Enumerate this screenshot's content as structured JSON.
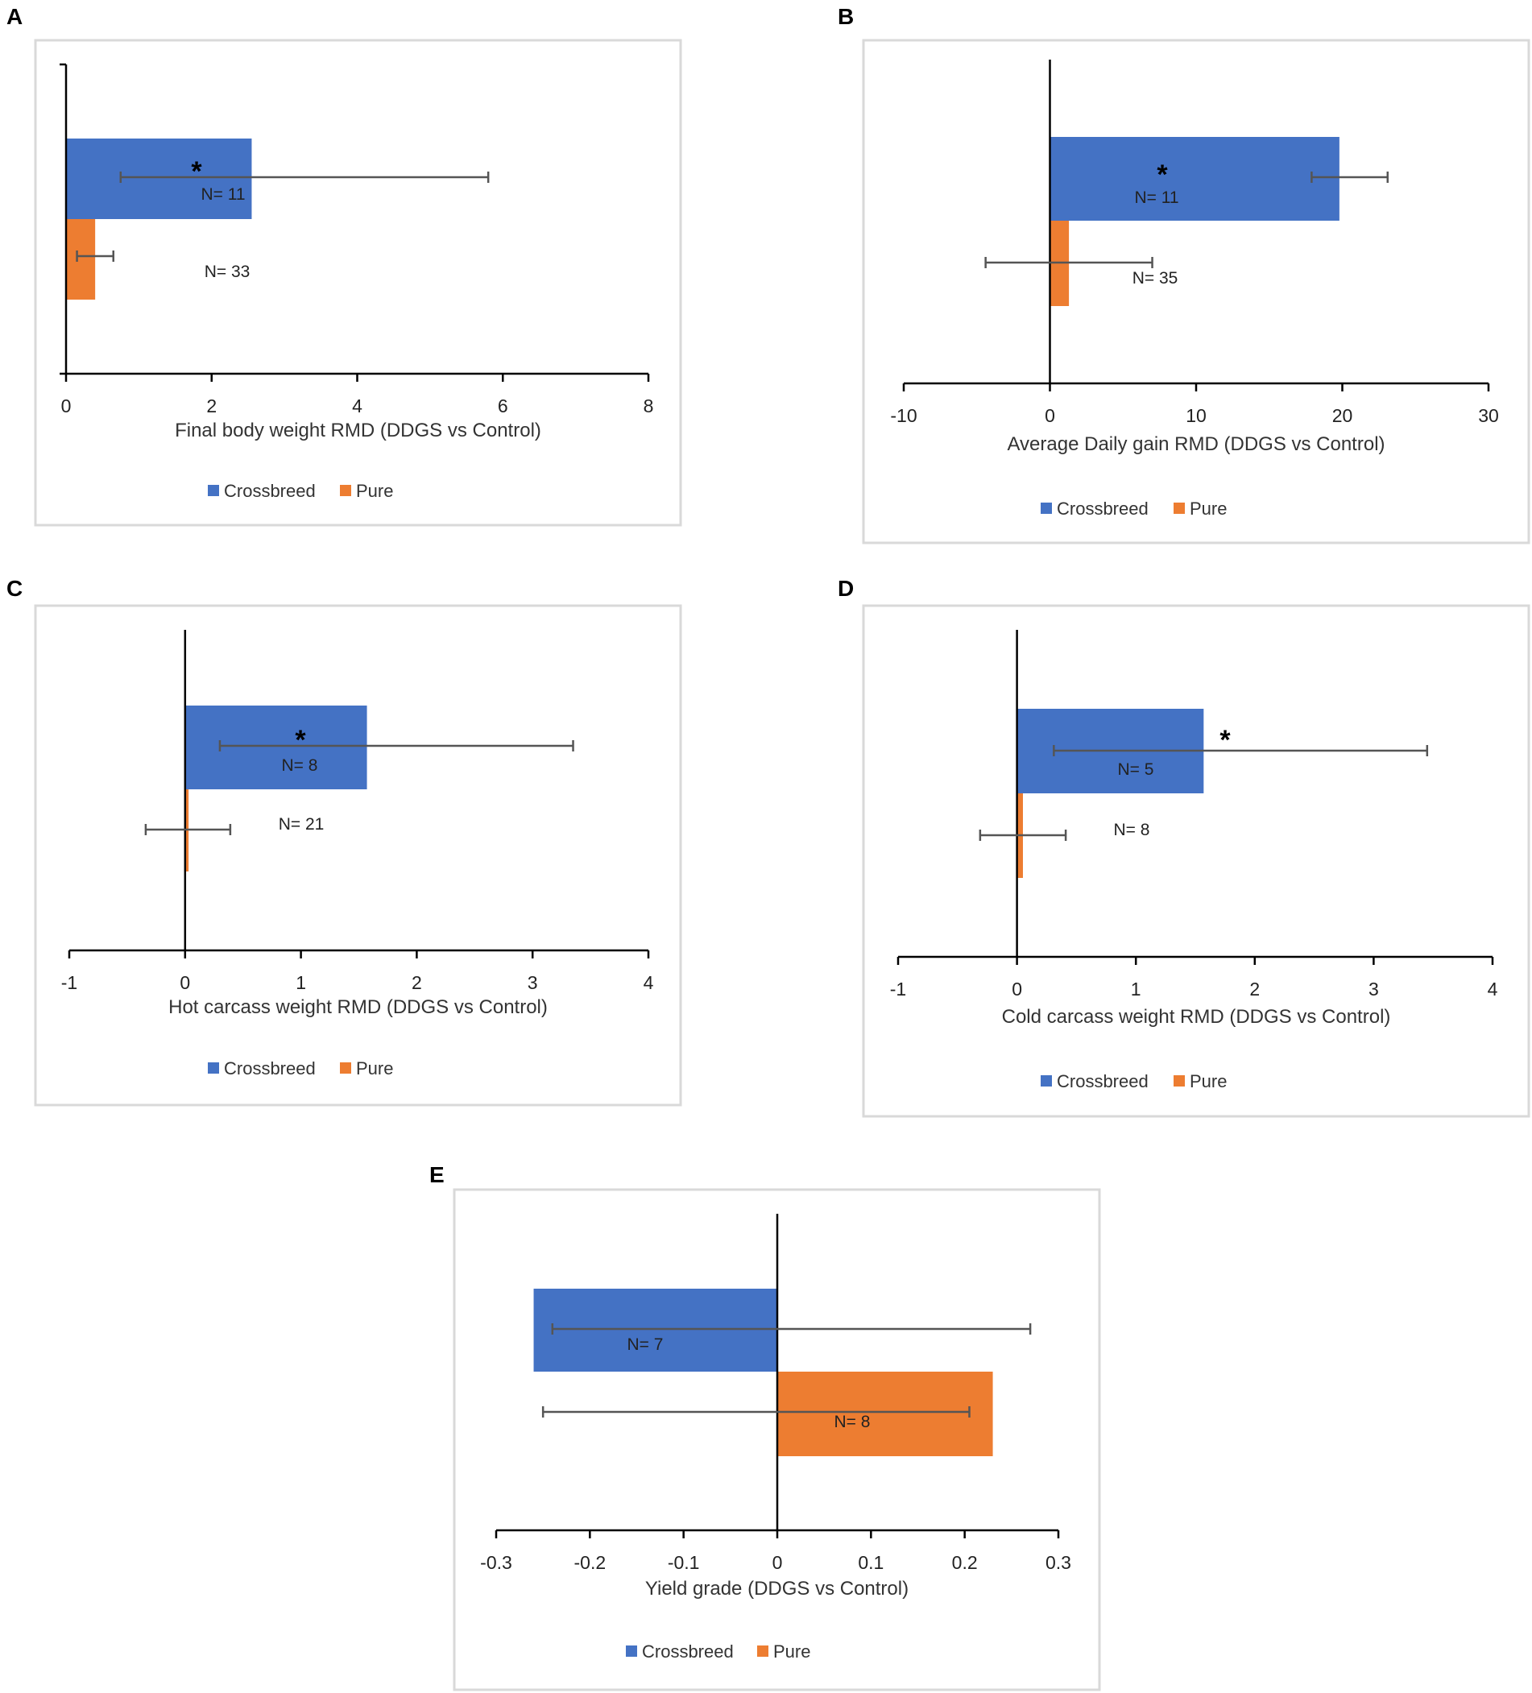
{
  "legend": {
    "crossbreed": "Crossbreed",
    "pure": "Pure"
  },
  "colors": {
    "crossbreed": "#4472C4",
    "pure": "#ED7D31",
    "axis": "#000000",
    "errorbar": "#555555",
    "frame": "#D9D9D9"
  },
  "chart_data": [
    {
      "type": "bar",
      "orientation": "horizontal",
      "panel": "A",
      "title": "",
      "xlabel": "Final body weight RMD (DDGS vs Control)",
      "xlim": [
        0,
        8
      ],
      "xticks": [
        0,
        2,
        4,
        6,
        8
      ],
      "xtick_labels": [
        "0",
        "2",
        "4",
        "6",
        "8"
      ],
      "series": [
        {
          "name": "Crossbreed",
          "value": 2.55,
          "err_low": 0.75,
          "err_high": 5.8,
          "n_label": "N= 11",
          "significant": "*"
        },
        {
          "name": "Pure",
          "value": 0.4,
          "err_low": 0.15,
          "err_high": 0.65,
          "n_label": "N= 33",
          "significant": ""
        }
      ]
    },
    {
      "type": "bar",
      "orientation": "horizontal",
      "panel": "B",
      "title": "",
      "xlabel": "Average Daily gain RMD (DDGS vs Control)",
      "xlim": [
        -10,
        30
      ],
      "xticks": [
        -10,
        0,
        10,
        20,
        30
      ],
      "xtick_labels": [
        "-10",
        "0",
        "10",
        "20",
        "30"
      ],
      "series": [
        {
          "name": "Crossbreed",
          "value": 19.8,
          "err_low": 17.9,
          "err_high": 23.1,
          "n_label": "N= 11",
          "significant": "*"
        },
        {
          "name": "Pure",
          "value": 1.3,
          "err_low": -4.4,
          "err_high": 7.0,
          "n_label": "N= 35",
          "significant": ""
        }
      ]
    },
    {
      "type": "bar",
      "orientation": "horizontal",
      "panel": "C",
      "title": "",
      "xlabel": "Hot carcass weight RMD (DDGS vs Control)",
      "xlim": [
        -1,
        4
      ],
      "xticks": [
        -1,
        0,
        1,
        2,
        3,
        4
      ],
      "xtick_labels": [
        "-1",
        "0",
        "1",
        "2",
        "3",
        "4"
      ],
      "series": [
        {
          "name": "Crossbreed",
          "value": 1.57,
          "err_low": 0.3,
          "err_high": 3.35,
          "n_label": "N= 8",
          "significant": "*"
        },
        {
          "name": "Pure",
          "value": 0.03,
          "err_low": -0.34,
          "err_high": 0.39,
          "n_label": "N= 21",
          "significant": ""
        }
      ]
    },
    {
      "type": "bar",
      "orientation": "horizontal",
      "panel": "D",
      "title": "",
      "xlabel": "Cold carcass weight RMD (DDGS vs Control)",
      "xlim": [
        -1,
        4
      ],
      "xticks": [
        -1,
        0,
        1,
        2,
        3,
        4
      ],
      "xtick_labels": [
        "-1",
        "0",
        "1",
        "2",
        "3",
        "4"
      ],
      "series": [
        {
          "name": "Crossbreed",
          "value": 1.57,
          "err_low": 0.31,
          "err_high": 3.45,
          "n_label": "N= 5",
          "significant": "*"
        },
        {
          "name": "Pure",
          "value": 0.05,
          "err_low": -0.31,
          "err_high": 0.41,
          "n_label": "N= 8",
          "significant": ""
        }
      ]
    },
    {
      "type": "bar",
      "orientation": "horizontal",
      "panel": "E",
      "title": "",
      "xlabel": "Yield grade (DDGS vs Control)",
      "xlim": [
        -0.3,
        0.3
      ],
      "xticks": [
        -0.3,
        -0.2,
        -0.1,
        0,
        0.1,
        0.2,
        0.3
      ],
      "xtick_labels": [
        "-0.3",
        "-0.2",
        "-0.1",
        "0",
        "0.1",
        "0.2",
        "0.3"
      ],
      "series": [
        {
          "name": "Crossbreed",
          "value": -0.26,
          "err_low": -0.24,
          "err_high": 0.27,
          "n_label": "N= 7",
          "significant": ""
        },
        {
          "name": "Pure",
          "value": 0.23,
          "err_low": -0.25,
          "err_high": 0.205,
          "n_label": "N= 8",
          "significant": ""
        }
      ]
    }
  ]
}
